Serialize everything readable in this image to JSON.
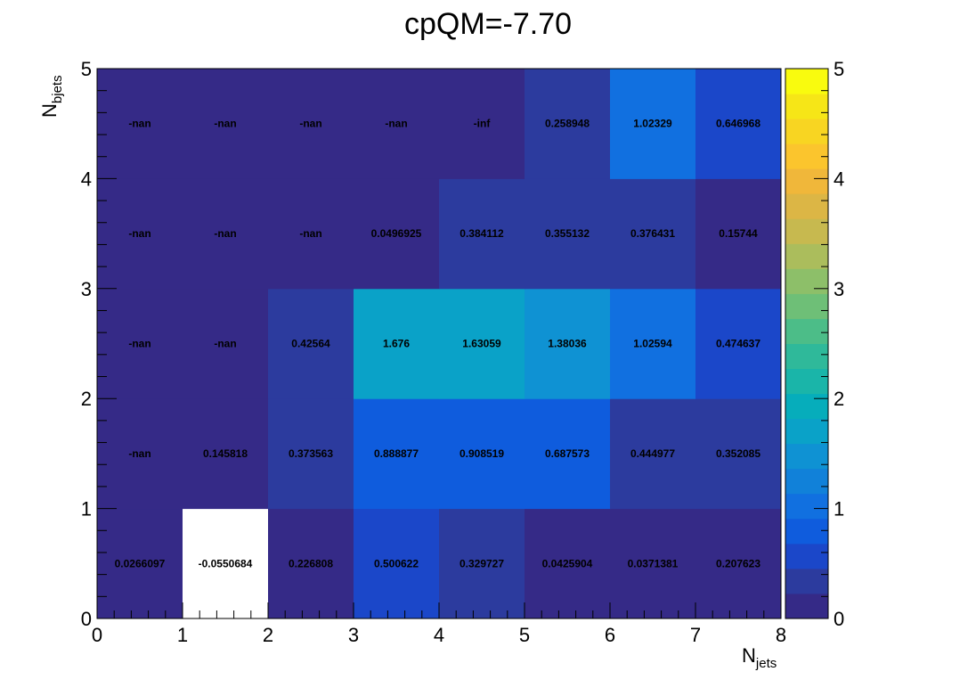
{
  "chart_data": {
    "type": "heatmap",
    "title": "cpQM=-7.70",
    "xlabel": {
      "main": "N",
      "sub": "jets"
    },
    "ylabel": {
      "main": "N",
      "sub": "bjets"
    },
    "xlim": [
      0,
      8
    ],
    "ylim": [
      0,
      5
    ],
    "zlim": [
      0,
      5
    ],
    "x_ticks": [
      "0",
      "1",
      "2",
      "3",
      "4",
      "5",
      "6",
      "7",
      "8"
    ],
    "y_ticks": [
      "0",
      "1",
      "2",
      "3",
      "4",
      "5"
    ],
    "z_ticks": [
      "0",
      "1",
      "2",
      "3",
      "4",
      "5"
    ],
    "grid": false,
    "colorbar": "right",
    "rows": [
      {
        "y": 0,
        "values": [
          0.0266097,
          -0.0550684,
          0.226808,
          0.500622,
          0.329727,
          0.0425904,
          0.0371381,
          0.207623
        ],
        "labels": [
          "0.0266097",
          "-0.0550684",
          "0.226808",
          "0.500622",
          "0.329727",
          "0.0425904",
          "0.0371381",
          "0.207623"
        ]
      },
      {
        "y": 1,
        "values": [
          null,
          0.145818,
          0.373563,
          0.888877,
          0.908519,
          0.687573,
          0.444977,
          0.352085
        ],
        "labels": [
          "-nan",
          "0.145818",
          "0.373563",
          "0.888877",
          "0.908519",
          "0.687573",
          "0.444977",
          "0.352085"
        ]
      },
      {
        "y": 2,
        "values": [
          null,
          null,
          0.42564,
          1.676,
          1.63059,
          1.38036,
          1.02594,
          0.474637
        ],
        "labels": [
          "-nan",
          "-nan",
          "0.42564",
          "1.676",
          "1.63059",
          "1.38036",
          "1.02594",
          "0.474637"
        ]
      },
      {
        "y": 3,
        "values": [
          null,
          null,
          null,
          0.0496925,
          0.384112,
          0.355132,
          0.376431,
          0.15744
        ],
        "labels": [
          "-nan",
          "-nan",
          "-nan",
          "0.0496925",
          "0.384112",
          "0.355132",
          "0.376431",
          "0.15744"
        ]
      },
      {
        "y": 4,
        "values": [
          null,
          null,
          null,
          null,
          null,
          0.258948,
          1.02329,
          0.646968
        ],
        "labels": [
          "-nan",
          "-nan",
          "-nan",
          "-nan",
          "-inf",
          "0.258948",
          "1.02329",
          "0.646968"
        ]
      }
    ],
    "palette": [
      "#352a87",
      "#2c3b9e",
      "#1b47c9",
      "#0f5cdd",
      "#1170e0",
      "#1181d9",
      "#0f92d3",
      "#0aa2c8",
      "#06adbb",
      "#1ab5a9",
      "#2fb99a",
      "#4cbd88",
      "#6ebf77",
      "#8dbf69",
      "#abbd5c",
      "#c7b94f",
      "#dcb645",
      "#f0b73a",
      "#fbc52d",
      "#f8d522",
      "#f6e617",
      "#f9fb0e"
    ]
  }
}
